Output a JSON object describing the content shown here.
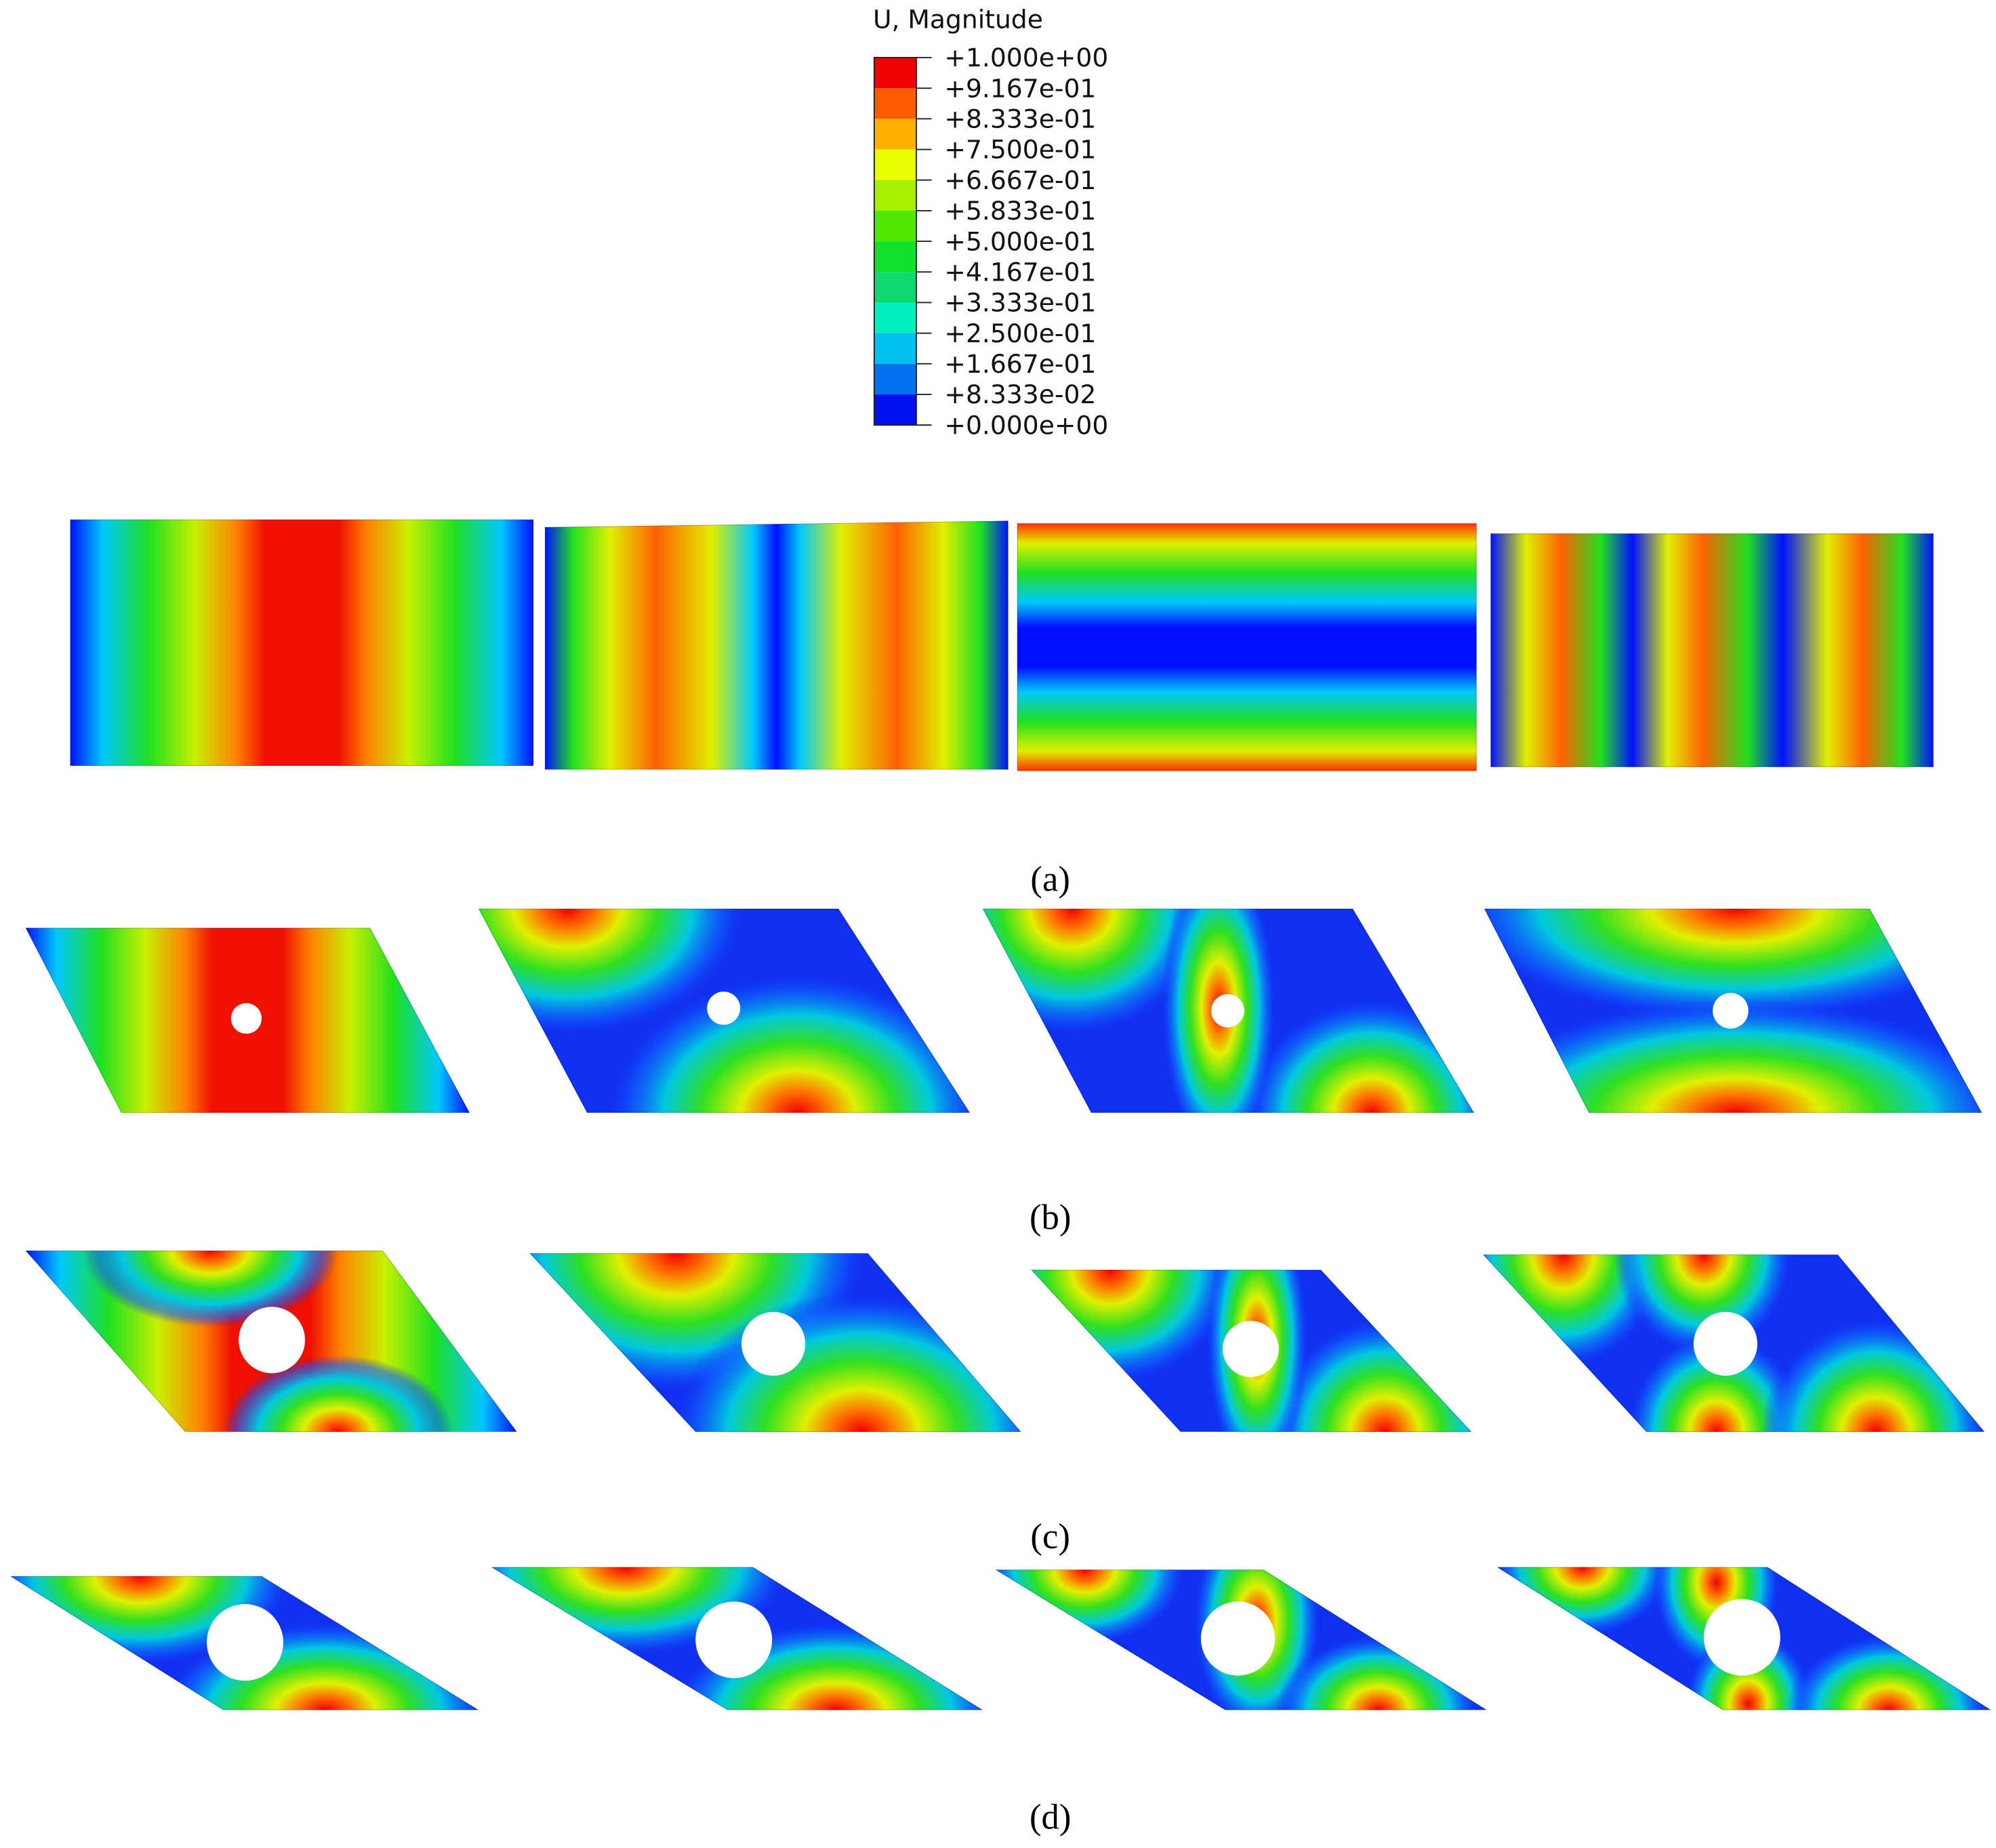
{
  "legend": {
    "title": "U, Magnitude",
    "labels": [
      "+1.000e+00",
      "+9.167e-01",
      "+8.333e-01",
      "+7.500e-01",
      "+6.667e-01",
      "+5.833e-01",
      "+5.000e-01",
      "+4.167e-01",
      "+3.333e-01",
      "+2.500e-01",
      "+1.667e-01",
      "+8.333e-02",
      "+0.000e+00"
    ]
  },
  "captions": [
    "(a)",
    "(b)",
    "(c)",
    "(d)"
  ]
}
